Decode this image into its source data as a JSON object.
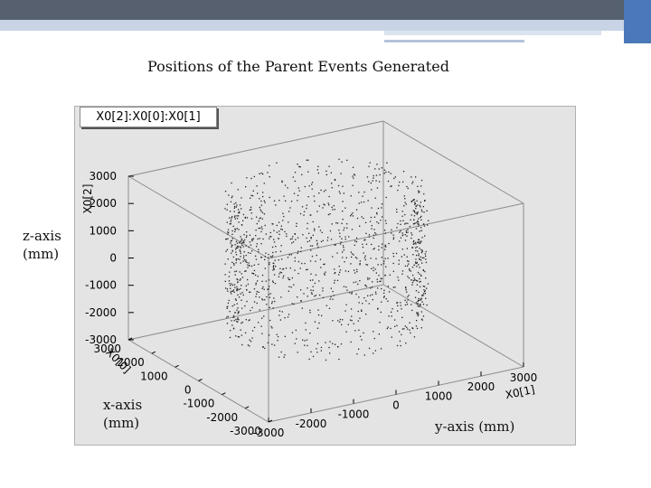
{
  "slide": {
    "title": "Positions of the Parent Events Generated",
    "hist_title": "X0[2]:X0[0]:X0[1]",
    "z_label_line1": "z-axis",
    "z_label_line2": "(mm)",
    "x_label_line1": "x-axis",
    "x_label_line2": "(mm)",
    "y_label": "y-axis (mm)"
  },
  "colors": {
    "header_dark": "#56606e",
    "header_light": "#c8d4e6",
    "accent_blue": "#4b78b8",
    "frame_bg": "#e4e4e4",
    "points": "#222222"
  },
  "chart_data": {
    "type": "scatter",
    "title": "X0[2]:X0[0]:X0[1]",
    "xlabel": "X0[1]",
    "ylabel": "X0[0]",
    "zlabel": "X0[2]",
    "xlim": [
      -3000,
      3000
    ],
    "ylim": [
      -3000,
      3000
    ],
    "zlim": [
      -3000,
      3000
    ],
    "x_ticks": [
      "-3000",
      "-2000",
      "-1000",
      "0",
      "1000",
      "2000",
      "3000"
    ],
    "y_ticks": [
      "-3000",
      "-2000",
      "-1000",
      "0",
      "1000",
      "2000",
      "3000"
    ],
    "z_ticks": [
      "-3000",
      "-2000",
      "-1000",
      "0",
      "1000",
      "2000",
      "3000"
    ],
    "distribution": "cylindrical shell, radius ~2000 mm about the z axis, z from -2000 to 3000 mm",
    "shell_radius": 2000,
    "z_range": [
      -2000,
      3000
    ],
    "n_points": 1300,
    "grid": false
  }
}
